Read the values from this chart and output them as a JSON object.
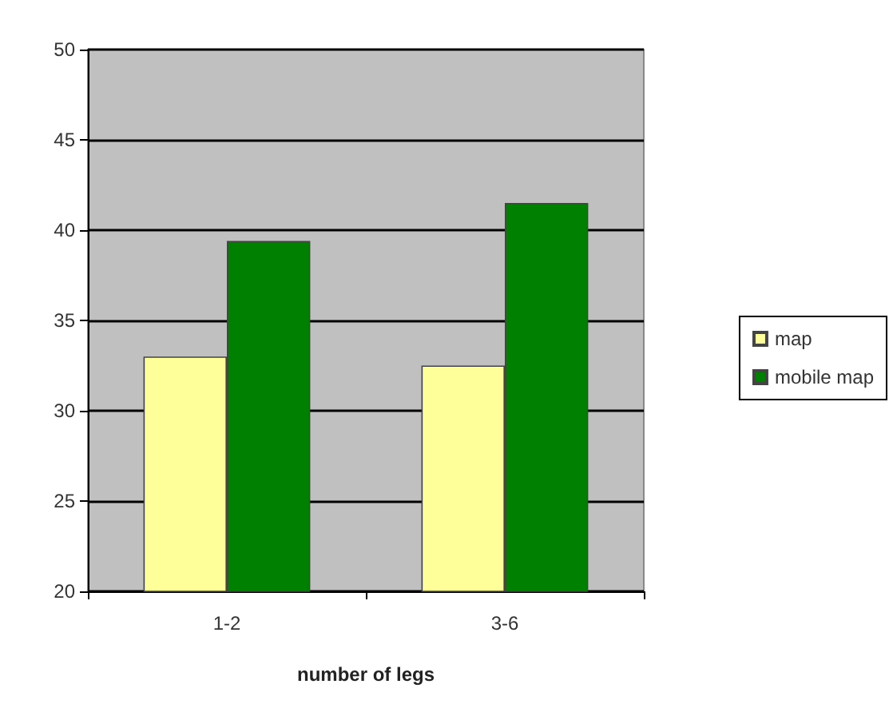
{
  "chart_data": {
    "type": "bar",
    "xlabel": "number of legs",
    "categories": [
      "1-2",
      "3-6"
    ],
    "series": [
      {
        "name": "map",
        "color": "#ffff99",
        "values": [
          33,
          32.5
        ]
      },
      {
        "name": "mobile map",
        "color": "#008000",
        "values": [
          39.4,
          41.5
        ]
      }
    ],
    "ylim": [
      20,
      50
    ],
    "yticks": [
      20,
      25,
      30,
      35,
      40,
      45,
      50
    ],
    "grid": "y",
    "legend": "right"
  }
}
